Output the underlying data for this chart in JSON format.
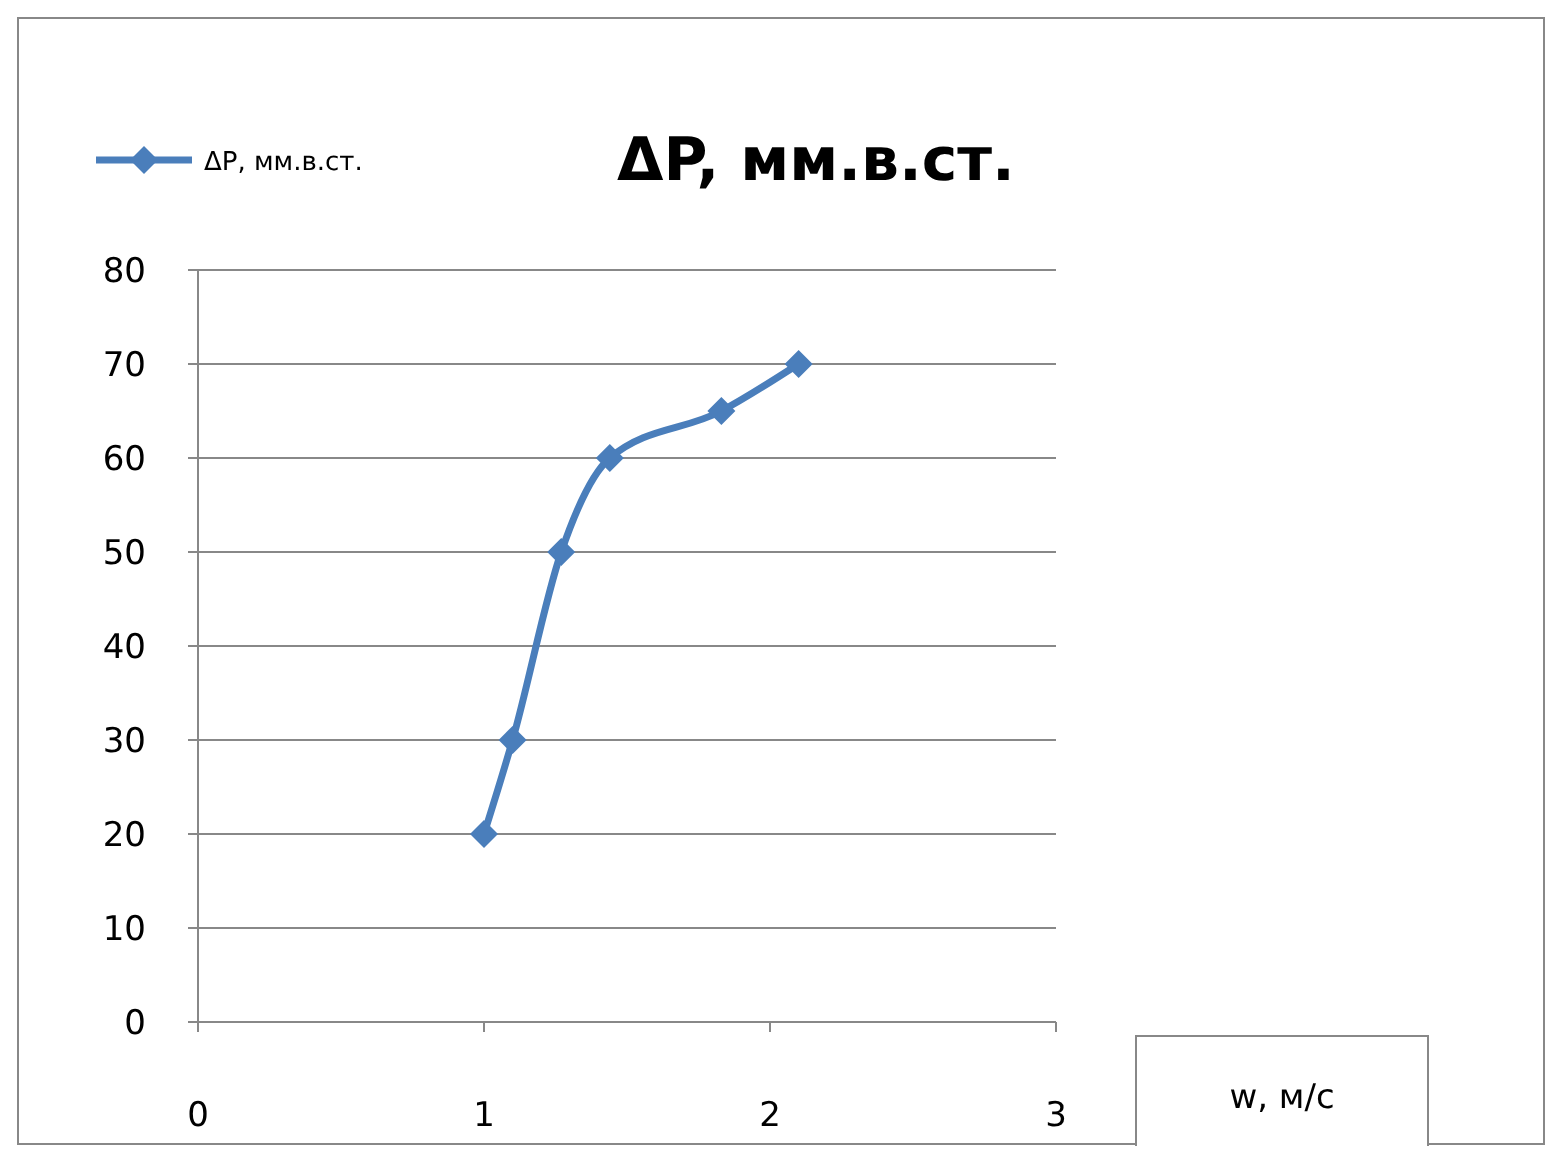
{
  "chart_data": {
    "type": "line",
    "title": "ΔP, мм.в.ст.",
    "xlabel": "w, м/с",
    "x": [
      1.0,
      1.1,
      1.27,
      1.44,
      1.83,
      2.1
    ],
    "series": [
      {
        "name": "ΔP, мм.в.ст.",
        "color": "#4a7ebb",
        "values": [
          20,
          30,
          50,
          60,
          65,
          70
        ]
      }
    ],
    "xlim": [
      0,
      3
    ],
    "xticks": [
      0,
      1,
      2,
      3
    ],
    "ylim": [
      0,
      80
    ],
    "yticks": [
      0,
      10,
      20,
      30,
      40,
      50,
      60,
      70,
      80
    ],
    "grid": "y",
    "legend": "top left",
    "marker": "diamond",
    "line_style": "solid"
  }
}
